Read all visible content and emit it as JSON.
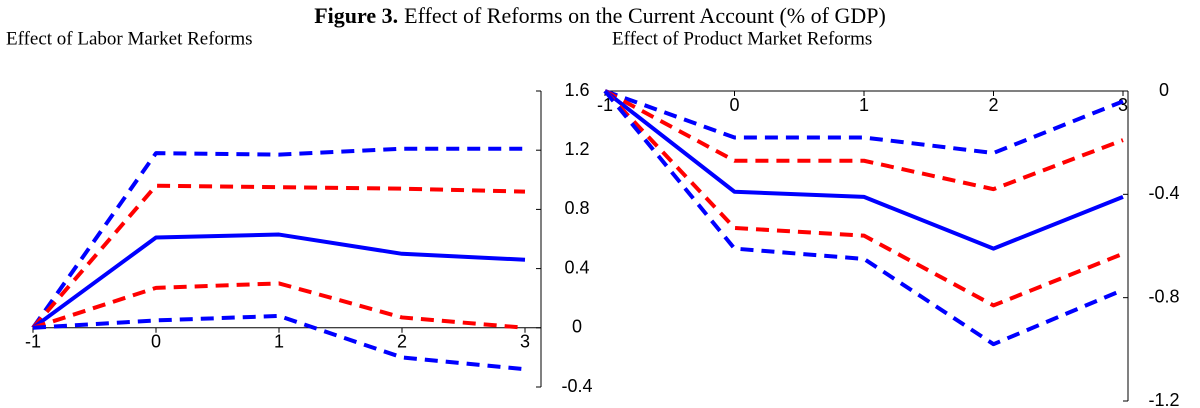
{
  "figure_label": "Figure 3.",
  "figure_title": "Effect of Reforms on the Current Account (% of GDP)",
  "chart_data": [
    {
      "type": "line",
      "title": "Effect of Labor Market Reforms",
      "x": [
        -1,
        0,
        1,
        2,
        3
      ],
      "xlim": [
        -1,
        3
      ],
      "xticks": [
        -1,
        0,
        1,
        2,
        3
      ],
      "ylim": [
        -0.4,
        1.6
      ],
      "yticks": [
        -0.4,
        0,
        0.4,
        0.8,
        1.2,
        1.6
      ],
      "y_axis_side": "right",
      "series": [
        {
          "color": "#0000ff",
          "linestyle": "dashed",
          "values": [
            0,
            1.18,
            1.17,
            1.21,
            1.21
          ]
        },
        {
          "color": "#ff0000",
          "linestyle": "dashed",
          "values": [
            0,
            0.96,
            0.95,
            0.94,
            0.92
          ]
        },
        {
          "color": "#0000ff",
          "linestyle": "solid",
          "values": [
            0,
            0.61,
            0.63,
            0.5,
            0.46
          ]
        },
        {
          "color": "#ff0000",
          "linestyle": "dashed",
          "values": [
            0,
            0.27,
            0.3,
            0.07,
            0
          ]
        },
        {
          "color": "#0000ff",
          "linestyle": "dashed",
          "values": [
            0,
            0.05,
            0.08,
            -0.2,
            -0.28
          ]
        }
      ]
    },
    {
      "type": "line",
      "title": "Effect of Product Market Reforms",
      "x": [
        -1,
        0,
        1,
        2,
        3
      ],
      "xlim": [
        -1,
        3
      ],
      "xticks": [
        -1,
        0,
        1,
        2,
        3
      ],
      "ylim": [
        -1.2,
        0
      ],
      "yticks": [
        -1.2,
        -0.8,
        -0.4,
        0
      ],
      "y_axis_side": "right",
      "series": [
        {
          "color": "#0000ff",
          "linestyle": "dashed",
          "values": [
            0,
            -0.18,
            -0.18,
            -0.24,
            -0.04
          ]
        },
        {
          "color": "#ff0000",
          "linestyle": "dashed",
          "values": [
            0,
            -0.27,
            -0.27,
            -0.38,
            -0.19
          ]
        },
        {
          "color": "#0000ff",
          "linestyle": "solid",
          "values": [
            0,
            -0.39,
            -0.41,
            -0.61,
            -0.41
          ]
        },
        {
          "color": "#ff0000",
          "linestyle": "dashed",
          "values": [
            0,
            -0.53,
            -0.56,
            -0.83,
            -0.63
          ]
        },
        {
          "color": "#0000ff",
          "linestyle": "dashed",
          "values": [
            0,
            -0.61,
            -0.65,
            -0.98,
            -0.77
          ]
        }
      ]
    }
  ]
}
